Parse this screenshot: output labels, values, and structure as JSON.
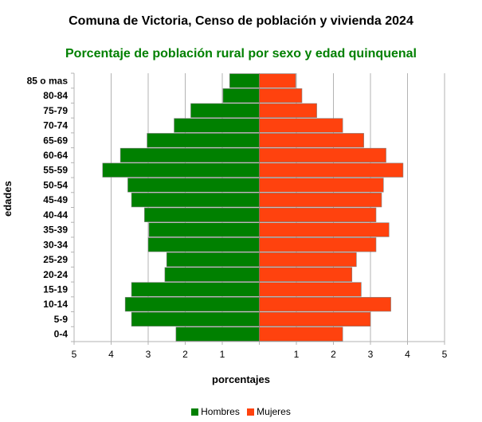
{
  "chart_data": {
    "type": "bar",
    "title": "Comuna de Victoria, Censo de población y vivienda 2024",
    "subtitle": "Porcentaje de población rural por sexo y edad quinquenal",
    "xlabel": "porcentajes",
    "ylabel": "edades",
    "xlim": [
      -5,
      5
    ],
    "x_tick_labels": [
      "5",
      "4",
      "3",
      "2",
      "1",
      "",
      "1",
      "2",
      "3",
      "4",
      "5"
    ],
    "categories": [
      "85 o mas",
      "80-84",
      "75-79",
      "70-74",
      "65-69",
      "60-64",
      "55-59",
      "50-54",
      "45-49",
      "40-44",
      "35-39",
      "30-34",
      "25-29",
      "20-24",
      "15-19",
      "10-14",
      "5-9",
      "0-4"
    ],
    "series": [
      {
        "name": "Hombres",
        "color": "#008000",
        "values": [
          0.8,
          0.98,
          1.85,
          2.3,
          3.03,
          3.75,
          4.23,
          3.55,
          3.45,
          3.1,
          2.98,
          3.0,
          2.5,
          2.55,
          3.45,
          3.62,
          3.45,
          2.25
        ]
      },
      {
        "name": "Mujeres",
        "color": "#ff420e",
        "values": [
          0.98,
          1.15,
          1.55,
          2.25,
          2.82,
          3.42,
          3.88,
          3.35,
          3.3,
          3.15,
          3.5,
          3.15,
          2.62,
          2.5,
          2.75,
          3.55,
          3.0,
          2.25
        ]
      }
    ],
    "grid": true,
    "legend_position": "bottom"
  }
}
